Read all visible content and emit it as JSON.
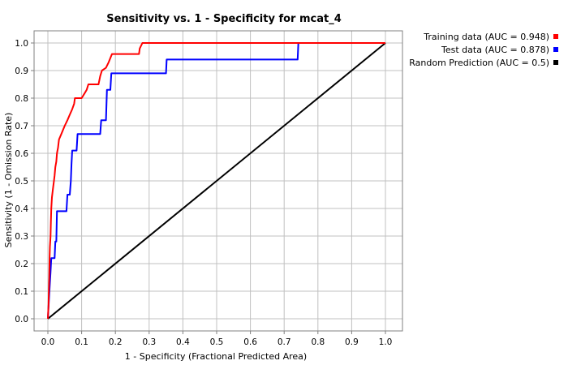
{
  "chart_data": {
    "type": "line",
    "title": "Sensitivity vs. 1 - Specificity for mcat_4",
    "xlabel": "1 - Specificity  (Fractional Predicted Area)",
    "ylabel": "Sensitivity  (1 - Omission Rate)",
    "xlim": [
      0,
      1
    ],
    "ylim": [
      0,
      1
    ],
    "xticks": [
      "0.0",
      "0.1",
      "0.2",
      "0.3",
      "0.4",
      "0.5",
      "0.6",
      "0.7",
      "0.8",
      "0.9",
      "1.0"
    ],
    "yticks": [
      "0.0",
      "0.1",
      "0.2",
      "0.3",
      "0.4",
      "0.5",
      "0.6",
      "0.7",
      "0.8",
      "0.9",
      "1.0"
    ],
    "grid": true,
    "legend_position": "right",
    "series": [
      {
        "name": "Training data (AUC = 0.948)",
        "color": "#ff0000",
        "points": [
          [
            0,
            0
          ],
          [
            0.002,
            0.05
          ],
          [
            0.003,
            0.1
          ],
          [
            0.004,
            0.15
          ],
          [
            0.005,
            0.22
          ],
          [
            0.006,
            0.26
          ],
          [
            0.008,
            0.3
          ],
          [
            0.009,
            0.35
          ],
          [
            0.01,
            0.4
          ],
          [
            0.012,
            0.44
          ],
          [
            0.015,
            0.47
          ],
          [
            0.018,
            0.5
          ],
          [
            0.02,
            0.52
          ],
          [
            0.022,
            0.55
          ],
          [
            0.025,
            0.57
          ],
          [
            0.027,
            0.6
          ],
          [
            0.03,
            0.62
          ],
          [
            0.033,
            0.65
          ],
          [
            0.04,
            0.67
          ],
          [
            0.05,
            0.7
          ],
          [
            0.058,
            0.72
          ],
          [
            0.065,
            0.74
          ],
          [
            0.072,
            0.76
          ],
          [
            0.078,
            0.78
          ],
          [
            0.08,
            0.8
          ],
          [
            0.1,
            0.8
          ],
          [
            0.11,
            0.82
          ],
          [
            0.115,
            0.83
          ],
          [
            0.12,
            0.85
          ],
          [
            0.15,
            0.85
          ],
          [
            0.155,
            0.88
          ],
          [
            0.16,
            0.9
          ],
          [
            0.172,
            0.91
          ],
          [
            0.18,
            0.93
          ],
          [
            0.19,
            0.96
          ],
          [
            0.27,
            0.96
          ],
          [
            0.272,
            0.98
          ],
          [
            0.28,
            1.0
          ],
          [
            0.74,
            1.0
          ],
          [
            1.0,
            1.0
          ]
        ]
      },
      {
        "name": "Test data (AUC = 0.878)",
        "color": "#0000ff",
        "points": [
          [
            0,
            0
          ],
          [
            0.005,
            0.11
          ],
          [
            0.008,
            0.17
          ],
          [
            0.01,
            0.22
          ],
          [
            0.02,
            0.22
          ],
          [
            0.022,
            0.28
          ],
          [
            0.025,
            0.28
          ],
          [
            0.027,
            0.39
          ],
          [
            0.055,
            0.39
          ],
          [
            0.058,
            0.45
          ],
          [
            0.065,
            0.45
          ],
          [
            0.068,
            0.5
          ],
          [
            0.07,
            0.56
          ],
          [
            0.072,
            0.61
          ],
          [
            0.085,
            0.61
          ],
          [
            0.088,
            0.67
          ],
          [
            0.155,
            0.67
          ],
          [
            0.158,
            0.72
          ],
          [
            0.172,
            0.72
          ],
          [
            0.175,
            0.83
          ],
          [
            0.185,
            0.83
          ],
          [
            0.188,
            0.89
          ],
          [
            0.35,
            0.89
          ],
          [
            0.352,
            0.94
          ],
          [
            0.74,
            0.94
          ],
          [
            0.742,
            1.0
          ],
          [
            1.0,
            1.0
          ]
        ]
      },
      {
        "name": "Random Prediction (AUC = 0.5)",
        "color": "#000000",
        "points": [
          [
            0,
            0
          ],
          [
            1,
            1
          ]
        ]
      }
    ]
  }
}
